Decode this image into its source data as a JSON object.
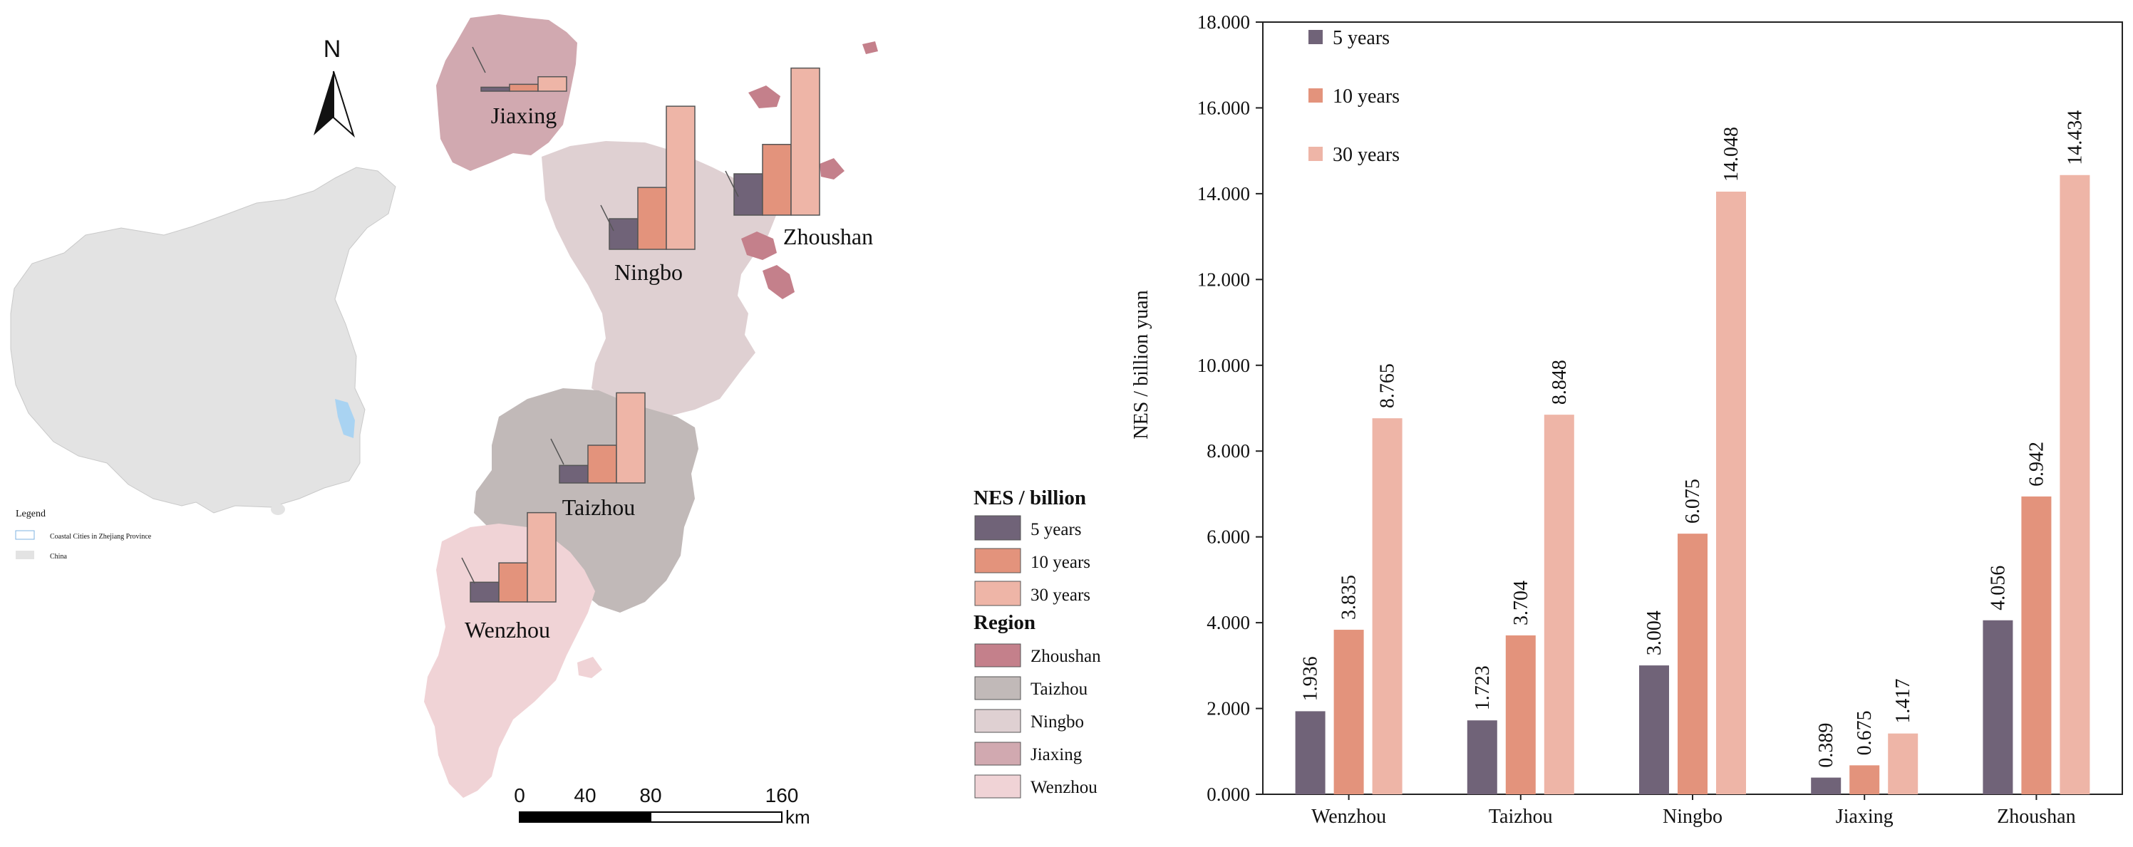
{
  "colors": {
    "y5": "#706378",
    "y10": "#e3937c",
    "y30": "#eeb5a7",
    "zhoushan": "#c4808b",
    "taizhou": "#c1b9b8",
    "ningbo": "#dfd0d2",
    "jiaxing": "#d1a9b0",
    "wenzhou": "#f0d3d6",
    "china": "#e3e3e3"
  },
  "map": {
    "north_label": "N",
    "cities": [
      {
        "name": "Jiaxing",
        "key": "jiaxing"
      },
      {
        "name": "Ningbo",
        "key": "ningbo"
      },
      {
        "name": "Zhoushan",
        "key": "zhoushan"
      },
      {
        "name": "Taizhou",
        "key": "taizhou"
      },
      {
        "name": "Wenzhou",
        "key": "wenzhou"
      }
    ],
    "inset_legend": {
      "title": "Legend",
      "items": [
        "Coastal Cities in Zhejiang Province",
        "China"
      ]
    },
    "scale_bar": {
      "ticks": [
        "0",
        "40",
        "80",
        "160"
      ],
      "unit": "km"
    },
    "legend": {
      "nes_title": "NES / billion",
      "nes_items": [
        "5 years",
        "10 years",
        "30 years"
      ],
      "region_title": "Region",
      "region_items": [
        "Zhoushan",
        "Taizhou",
        "Ningbo",
        "Jiaxing",
        "Wenzhou"
      ]
    }
  },
  "chart_data": {
    "type": "bar",
    "categories": [
      "Wenzhou",
      "Taizhou",
      "Ningbo",
      "Jiaxing",
      "Zhoushan"
    ],
    "series": [
      {
        "name": "5 years",
        "values": [
          1.936,
          1.723,
          3.004,
          0.389,
          4.056
        ],
        "labels": [
          "1.936",
          "1.723",
          "3.004",
          "0.389",
          "4.056"
        ]
      },
      {
        "name": "10 years",
        "values": [
          3.835,
          3.704,
          6.075,
          0.675,
          6.942
        ],
        "labels": [
          "3.835",
          "3.704",
          "6.075",
          "0.675",
          "6.942"
        ]
      },
      {
        "name": "30 years",
        "values": [
          8.765,
          8.848,
          14.048,
          1.417,
          14.434
        ],
        "labels": [
          "8.765",
          "8.848",
          "14.048",
          "1.417",
          "14.434"
        ]
      }
    ],
    "ylabel": "NES / billion yuan",
    "xlabel": "",
    "ylim": [
      0,
      18
    ],
    "yticks": [
      0,
      2,
      4,
      6,
      8,
      10,
      12,
      14,
      16,
      18
    ],
    "ytick_labels": [
      "0.000",
      "2.000",
      "4.000",
      "6.000",
      "8.000",
      "10.000",
      "12.000",
      "14.000",
      "16.000",
      "18.000"
    ],
    "legend_position": "top-left",
    "grid": false
  }
}
